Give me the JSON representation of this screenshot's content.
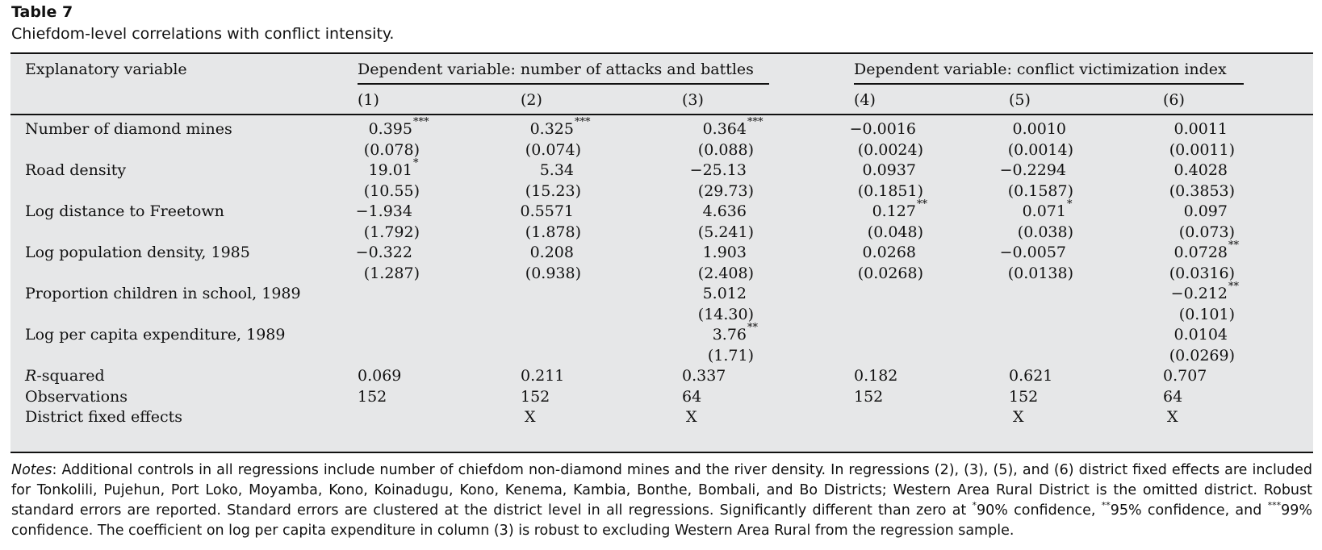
{
  "caption": {
    "title": "Table 7",
    "subtitle": "Chiefdom-level correlations with conflict intensity."
  },
  "header": {
    "explanatory": "Explanatory variable",
    "group1": "Dependent variable: number of attacks and battles",
    "group2": "Dependent variable: conflict victimization index",
    "columns": [
      "(1)",
      "(2)",
      "(3)",
      "(4)",
      "(5)",
      "(6)"
    ]
  },
  "rows": [
    {
      "label": "Number of diamond mines",
      "coef": [
        "0.395",
        "0.325",
        "0.364",
        "−0.0016",
        "0.0010",
        "0.0011"
      ],
      "stars": [
        "***",
        "***",
        "***",
        "",
        "",
        ""
      ],
      "se": [
        "(0.078)",
        "(0.074)",
        "(0.088)",
        "(0.0024)",
        "(0.0014)",
        "(0.0011)"
      ]
    },
    {
      "label": "Road density",
      "coef": [
        "19.01",
        "5.34",
        "−25.13",
        "0.0937",
        "−0.2294",
        "0.4028"
      ],
      "stars": [
        "*",
        "",
        "",
        "",
        "",
        ""
      ],
      "se": [
        "(10.55)",
        "(15.23)",
        "(29.73)",
        "(0.1851)",
        "(0.1587)",
        "(0.3853)"
      ]
    },
    {
      "label": "Log distance to Freetown",
      "coef": [
        "−1.934",
        "0.5571",
        "4.636",
        "0.127",
        "0.071",
        "0.097"
      ],
      "stars": [
        "",
        "",
        "",
        "**",
        "*",
        ""
      ],
      "se": [
        "(1.792)",
        "(1.878)",
        "(5.241)",
        "(0.048)",
        "(0.038)",
        "(0.073)"
      ]
    },
    {
      "label": "Log population density, 1985",
      "coef": [
        "−0.322",
        "0.208",
        "1.903",
        "0.0268",
        "−0.0057",
        "0.0728"
      ],
      "stars": [
        "",
        "",
        "",
        "",
        "",
        "**"
      ],
      "se": [
        "(1.287)",
        "(0.938)",
        "(2.408)",
        "(0.0268)",
        "(0.0138)",
        "(0.0316)"
      ]
    },
    {
      "label": "Proportion children in school, 1989",
      "coef": [
        "",
        "",
        "5.012",
        "",
        "",
        "−0.212"
      ],
      "stars": [
        "",
        "",
        "",
        "",
        "",
        "**"
      ],
      "se": [
        "",
        "",
        "(14.30)",
        "",
        "",
        "(0.101)"
      ]
    },
    {
      "label": "Log per capita expenditure, 1989",
      "coef": [
        "",
        "",
        "3.76",
        "",
        "",
        "0.0104"
      ],
      "stars": [
        "",
        "",
        "**",
        "",
        "",
        ""
      ],
      "se": [
        "",
        "",
        "(1.71)",
        "",
        "",
        "(0.0269)"
      ]
    }
  ],
  "stats": {
    "rsq_label_italic": "R",
    "rsq_label_rest": "-squared",
    "rsq": [
      "0.069",
      "0.211",
      "0.337",
      "0.182",
      "0.621",
      "0.707"
    ],
    "obs_label": "Observations",
    "obs": [
      "152",
      "152",
      "64",
      "152",
      "152",
      "64"
    ],
    "fe_label": "District fixed effects",
    "fe": [
      "",
      "X",
      "X",
      "",
      "X",
      "X"
    ]
  },
  "notes": {
    "lead": "Notes",
    "text1": ": Additional controls in all regressions include number of chiefdom non-diamond mines and the river density. In regressions (2), (3), (5), and (6) district fixed effects are included for Tonkolili, Pujehun, Port Loko, Moyamba, Kono, Koinadugu, Kono, Kenema, Kambia, Bonthe, Bombali, and Bo Districts; Western Area Rural District is the omitted district. Robust standard errors are reported. Standard errors are clustered at the district level in all regressions. Significantly different than zero at ",
    "star1": "*",
    "text2": "90% confidence, ",
    "star2": "**",
    "text3": "95% confidence, and ",
    "star3": "***",
    "text4": "99% confidence. The coefficient on log per capita expenditure in column (3) is robust to excluding Western Area Rural from the regression sample."
  }
}
